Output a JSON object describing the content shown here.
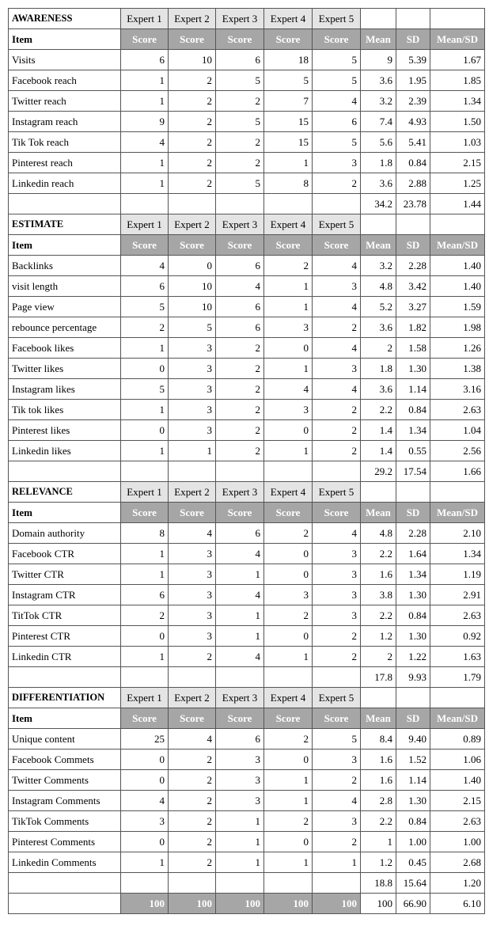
{
  "sections": [
    {
      "title": "AWARENESS",
      "experts": [
        "Expert 1",
        "Expert 2",
        "Expert 3",
        "Expert 4",
        "Expert 5"
      ],
      "header": [
        "Item",
        "Score",
        "Score",
        "Score",
        "Score",
        "Score",
        "Mean",
        "SD",
        "Mean/SD"
      ],
      "rows": [
        {
          "item": "Visits",
          "scores": [
            "6",
            "10",
            "6",
            "18",
            "5"
          ],
          "mean": "9",
          "sd": "5.39",
          "ratio": "1.67"
        },
        {
          "item": "Facebook reach",
          "scores": [
            "1",
            "2",
            "5",
            "5",
            "5"
          ],
          "mean": "3.6",
          "sd": "1.95",
          "ratio": "1.85"
        },
        {
          "item": "Twitter reach",
          "scores": [
            "1",
            "2",
            "2",
            "7",
            "4"
          ],
          "mean": "3.2",
          "sd": "2.39",
          "ratio": "1.34"
        },
        {
          "item": "Instagram reach",
          "scores": [
            "9",
            "2",
            "5",
            "15",
            "6"
          ],
          "mean": "7.4",
          "sd": "4.93",
          "ratio": "1.50"
        },
        {
          "item": "Tik Tok reach",
          "scores": [
            "4",
            "2",
            "2",
            "15",
            "5"
          ],
          "mean": "5.6",
          "sd": "5.41",
          "ratio": "1.03"
        },
        {
          "item": "Pinterest reach",
          "scores": [
            "1",
            "2",
            "2",
            "1",
            "3"
          ],
          "mean": "1.8",
          "sd": "0.84",
          "ratio": "2.15"
        },
        {
          "item": "Linkedin reach",
          "scores": [
            "1",
            "2",
            "5",
            "8",
            "2"
          ],
          "mean": "3.6",
          "sd": "2.88",
          "ratio": "1.25"
        }
      ],
      "total": {
        "mean": "34.2",
        "sd": "23.78",
        "ratio": "1.44"
      }
    },
    {
      "title": "ESTIMATE",
      "experts": [
        "Expert 1",
        "Expert 2",
        "Expert 3",
        "Expert 4",
        "Expert 5"
      ],
      "header": [
        "Item",
        "Score",
        "Score",
        "Score",
        "Score",
        "Score",
        "Mean",
        "SD",
        "Mean/SD"
      ],
      "rows": [
        {
          "item": "Backlinks",
          "scores": [
            "4",
            "0",
            "6",
            "2",
            "4"
          ],
          "mean": "3.2",
          "sd": "2.28",
          "ratio": "1.40"
        },
        {
          "item": "visit length",
          "scores": [
            "6",
            "10",
            "4",
            "1",
            "3"
          ],
          "mean": "4.8",
          "sd": "3.42",
          "ratio": "1.40"
        },
        {
          "item": "Page view",
          "scores": [
            "5",
            "10",
            "6",
            "1",
            "4"
          ],
          "mean": "5.2",
          "sd": "3.27",
          "ratio": "1.59"
        },
        {
          "item": "rebounce percentage",
          "scores": [
            "2",
            "5",
            "6",
            "3",
            "2"
          ],
          "mean": "3.6",
          "sd": "1.82",
          "ratio": "1.98"
        },
        {
          "item": "Facebook likes",
          "scores": [
            "1",
            "3",
            "2",
            "0",
            "4"
          ],
          "mean": "2",
          "sd": "1.58",
          "ratio": "1.26"
        },
        {
          "item": "Twitter likes",
          "scores": [
            "0",
            "3",
            "2",
            "1",
            "3"
          ],
          "mean": "1.8",
          "sd": "1.30",
          "ratio": "1.38"
        },
        {
          "item": "Instagram likes",
          "scores": [
            "5",
            "3",
            "2",
            "4",
            "4"
          ],
          "mean": "3.6",
          "sd": "1.14",
          "ratio": "3.16"
        },
        {
          "item": "Tik tok likes",
          "scores": [
            "1",
            "3",
            "2",
            "3",
            "2"
          ],
          "mean": "2.2",
          "sd": "0.84",
          "ratio": "2.63"
        },
        {
          "item": "Pinterest likes",
          "scores": [
            "0",
            "3",
            "2",
            "0",
            "2"
          ],
          "mean": "1.4",
          "sd": "1.34",
          "ratio": "1.04"
        },
        {
          "item": "Linkedin likes",
          "scores": [
            "1",
            "1",
            "2",
            "1",
            "2"
          ],
          "mean": "1.4",
          "sd": "0.55",
          "ratio": "2.56"
        }
      ],
      "total": {
        "mean": "29.2",
        "sd": "17.54",
        "ratio": "1.66"
      }
    },
    {
      "title": "RELEVANCE",
      "experts": [
        "Expert 1",
        "Expert 2",
        "Expert 3",
        "Expert 4",
        "Expert 5"
      ],
      "header": [
        "Item",
        "Score",
        "Score",
        "Score",
        "Score",
        "Score",
        "Mean",
        "SD",
        "Mean/SD"
      ],
      "rows": [
        {
          "item": "Domain authority",
          "scores": [
            "8",
            "4",
            "6",
            "2",
            "4"
          ],
          "mean": "4.8",
          "sd": "2.28",
          "ratio": "2.10"
        },
        {
          "item": "Facebook CTR",
          "scores": [
            "1",
            "3",
            "4",
            "0",
            "3"
          ],
          "mean": "2.2",
          "sd": "1.64",
          "ratio": "1.34"
        },
        {
          "item": "Twitter CTR",
          "scores": [
            "1",
            "3",
            "1",
            "0",
            "3"
          ],
          "mean": "1.6",
          "sd": "1.34",
          "ratio": "1.19"
        },
        {
          "item": "Instagram CTR",
          "scores": [
            "6",
            "3",
            "4",
            "3",
            "3"
          ],
          "mean": "3.8",
          "sd": "1.30",
          "ratio": "2.91"
        },
        {
          "item": "TitTok CTR",
          "scores": [
            "2",
            "3",
            "1",
            "2",
            "3"
          ],
          "mean": "2.2",
          "sd": "0.84",
          "ratio": "2.63"
        },
        {
          "item": "Pinterest CTR",
          "scores": [
            "0",
            "3",
            "1",
            "0",
            "2"
          ],
          "mean": "1.2",
          "sd": "1.30",
          "ratio": "0.92"
        },
        {
          "item": "Linkedin CTR",
          "scores": [
            "1",
            "2",
            "4",
            "1",
            "2"
          ],
          "mean": "2",
          "sd": "1.22",
          "ratio": "1.63"
        }
      ],
      "total": {
        "mean": "17.8",
        "sd": "9.93",
        "ratio": "1.79"
      }
    },
    {
      "title": "DIFFERENTIATION",
      "experts": [
        "Expert 1",
        "Expert 2",
        "Expert 3",
        "Expert 4",
        "Expert 5"
      ],
      "header": [
        "Item",
        "Score",
        "Score",
        "Score",
        "Score",
        "Score",
        "Mean",
        "SD",
        "Mean/SD"
      ],
      "rows": [
        {
          "item": "Unique content",
          "scores": [
            "25",
            "4",
            "6",
            "2",
            "5"
          ],
          "mean": "8.4",
          "sd": "9.40",
          "ratio": "0.89"
        },
        {
          "item": "Facebook Commets",
          "scores": [
            "0",
            "2",
            "3",
            "0",
            "3"
          ],
          "mean": "1.6",
          "sd": "1.52",
          "ratio": "1.06"
        },
        {
          "item": "Twitter Comments",
          "scores": [
            "0",
            "2",
            "3",
            "1",
            "2"
          ],
          "mean": "1.6",
          "sd": "1.14",
          "ratio": "1.40"
        },
        {
          "item": "Instagram Comments",
          "scores": [
            "4",
            "2",
            "3",
            "1",
            "4"
          ],
          "mean": "2.8",
          "sd": "1.30",
          "ratio": "2.15"
        },
        {
          "item": "TikTok Comments",
          "scores": [
            "3",
            "2",
            "1",
            "2",
            "3"
          ],
          "mean": "2.2",
          "sd": "0.84",
          "ratio": "2.63"
        },
        {
          "item": "Pinterest Comments",
          "scores": [
            "0",
            "2",
            "1",
            "0",
            "2"
          ],
          "mean": "1",
          "sd": "1.00",
          "ratio": "1.00"
        },
        {
          "item": "Linkedin Comments",
          "scores": [
            "1",
            "2",
            "1",
            "1",
            "1"
          ],
          "mean": "1.2",
          "sd": "0.45",
          "ratio": "2.68"
        }
      ],
      "total": {
        "mean": "18.8",
        "sd": "15.64",
        "ratio": "1.20"
      }
    }
  ],
  "final": {
    "scores": [
      "100",
      "100",
      "100",
      "100",
      "100"
    ],
    "mean": "100",
    "sd": "66.90",
    "ratio": "6.10"
  }
}
